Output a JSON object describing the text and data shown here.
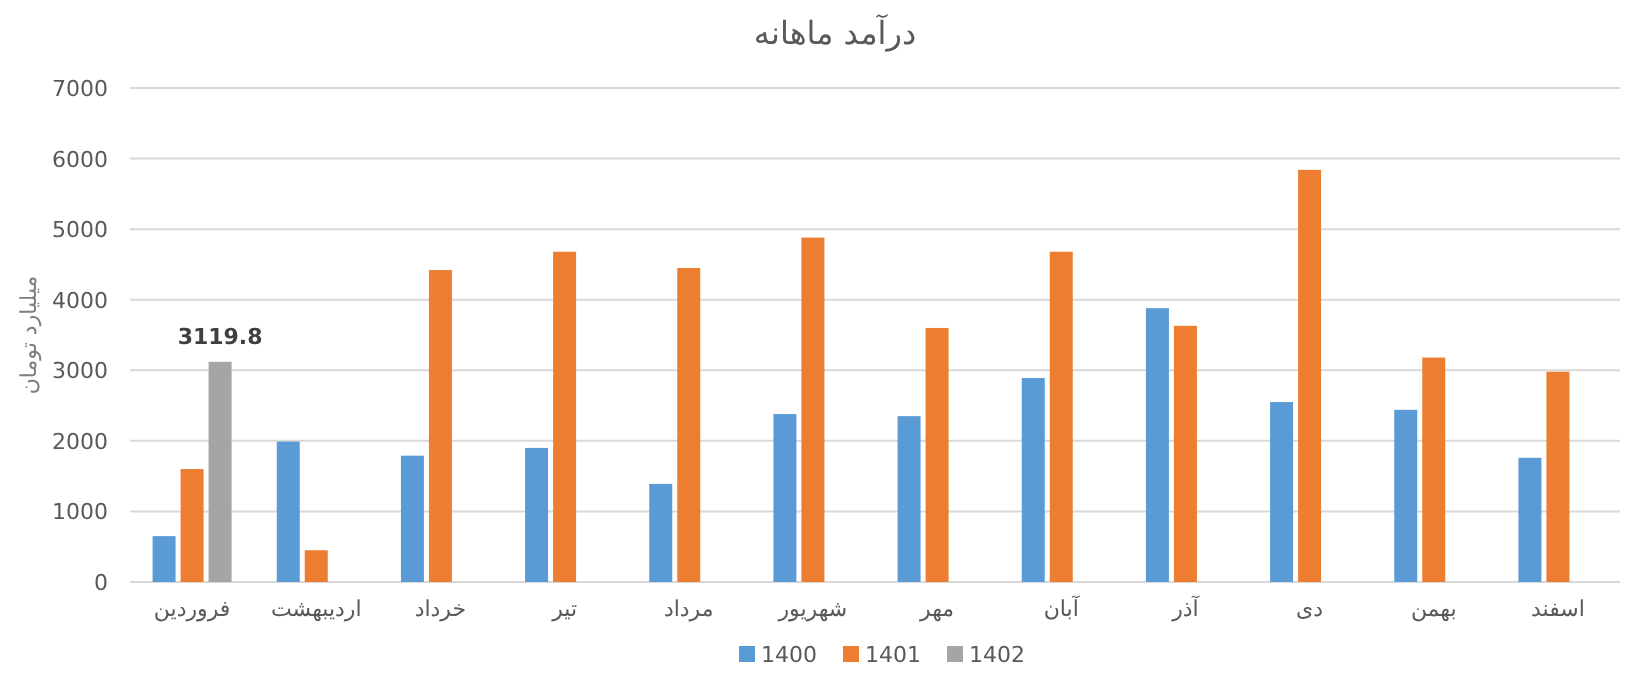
{
  "chart_data": {
    "type": "bar",
    "title": "درآمد ماهانه",
    "ylabel": "میلیارد تومان",
    "categories": [
      "فروردین",
      "اردیبهشت",
      "خرداد",
      "تیر",
      "مرداد",
      "شهریور",
      "مهر",
      "آبان",
      "آذر",
      "دی",
      "بهمن",
      "اسفند"
    ],
    "series": [
      {
        "name": "1400",
        "color": "#5b9bd5",
        "values": [
          650,
          1990,
          1790,
          1900,
          1390,
          2380,
          2350,
          2890,
          3880,
          2550,
          2440,
          1760
        ]
      },
      {
        "name": "1401",
        "color": "#ed7d31",
        "values": [
          1600,
          450,
          4420,
          4680,
          4450,
          4880,
          3600,
          4680,
          3630,
          5840,
          3180,
          2980
        ]
      },
      {
        "name": "1402",
        "color": "#a5a5a5",
        "values": [
          3119.8,
          null,
          null,
          null,
          null,
          null,
          null,
          null,
          null,
          null,
          null,
          null
        ],
        "value_labels": [
          "3119.8",
          null,
          null,
          null,
          null,
          null,
          null,
          null,
          null,
          null,
          null,
          null
        ]
      }
    ],
    "ylim": [
      0,
      7000
    ],
    "yticks": [
      0,
      1000,
      2000,
      3000,
      4000,
      5000,
      6000,
      7000
    ],
    "grid": "y",
    "legend": "bottom"
  }
}
